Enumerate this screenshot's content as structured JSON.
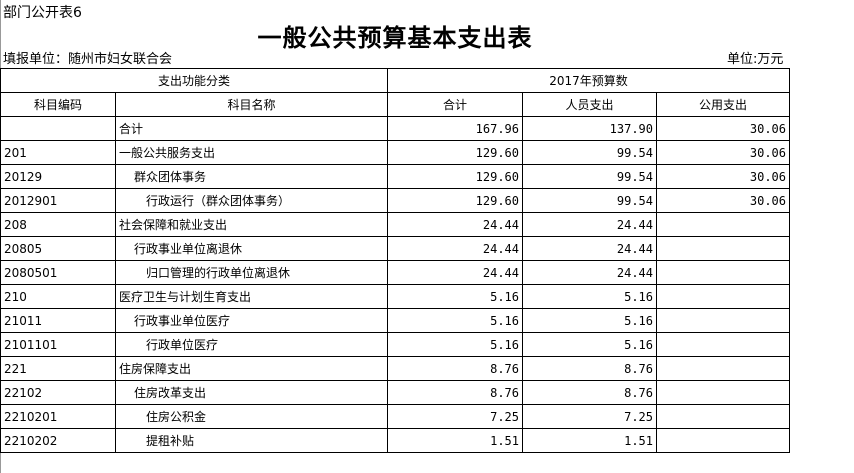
{
  "header": {
    "tag": "部门公开表6",
    "title": "一般公共预算基本支出表",
    "org": "填报单位：随州市妇女联合会",
    "unit": "单位:万元"
  },
  "columns": {
    "group1": "支出功能分类",
    "group2": "2017年预算数",
    "code": "科目编码",
    "name": "科目名称",
    "total": "合计",
    "personnel": "人员支出",
    "public": "公用支出"
  },
  "rows": [
    {
      "code": "",
      "name": "合计",
      "level": 0,
      "total": "167.96",
      "personnel": "137.90",
      "public": "30.06"
    },
    {
      "code": "201",
      "name": "一般公共服务支出",
      "level": 0,
      "total": "129.60",
      "personnel": "99.54",
      "public": "30.06"
    },
    {
      "code": "20129",
      "name": "群众团体事务",
      "level": 1,
      "total": "129.60",
      "personnel": "99.54",
      "public": "30.06"
    },
    {
      "code": "2012901",
      "name": "行政运行（群众团体事务）",
      "level": 2,
      "total": "129.60",
      "personnel": "99.54",
      "public": "30.06"
    },
    {
      "code": "208",
      "name": "社会保障和就业支出",
      "level": 0,
      "total": "24.44",
      "personnel": "24.44",
      "public": ""
    },
    {
      "code": "20805",
      "name": "行政事业单位离退休",
      "level": 1,
      "total": "24.44",
      "personnel": "24.44",
      "public": ""
    },
    {
      "code": "2080501",
      "name": "归口管理的行政单位离退休",
      "level": 2,
      "total": "24.44",
      "personnel": "24.44",
      "public": ""
    },
    {
      "code": "210",
      "name": "医疗卫生与计划生育支出",
      "level": 0,
      "total": "5.16",
      "personnel": "5.16",
      "public": ""
    },
    {
      "code": "21011",
      "name": "行政事业单位医疗",
      "level": 1,
      "total": "5.16",
      "personnel": "5.16",
      "public": ""
    },
    {
      "code": "2101101",
      "name": "行政单位医疗",
      "level": 2,
      "total": "5.16",
      "personnel": "5.16",
      "public": ""
    },
    {
      "code": "221",
      "name": "住房保障支出",
      "level": 0,
      "total": "8.76",
      "personnel": "8.76",
      "public": ""
    },
    {
      "code": "22102",
      "name": "住房改革支出",
      "level": 1,
      "total": "8.76",
      "personnel": "8.76",
      "public": ""
    },
    {
      "code": "2210201",
      "name": "住房公积金",
      "level": 2,
      "total": "7.25",
      "personnel": "7.25",
      "public": ""
    },
    {
      "code": "2210202",
      "name": "提租补贴",
      "level": 2,
      "total": "1.51",
      "personnel": "1.51",
      "public": ""
    }
  ]
}
